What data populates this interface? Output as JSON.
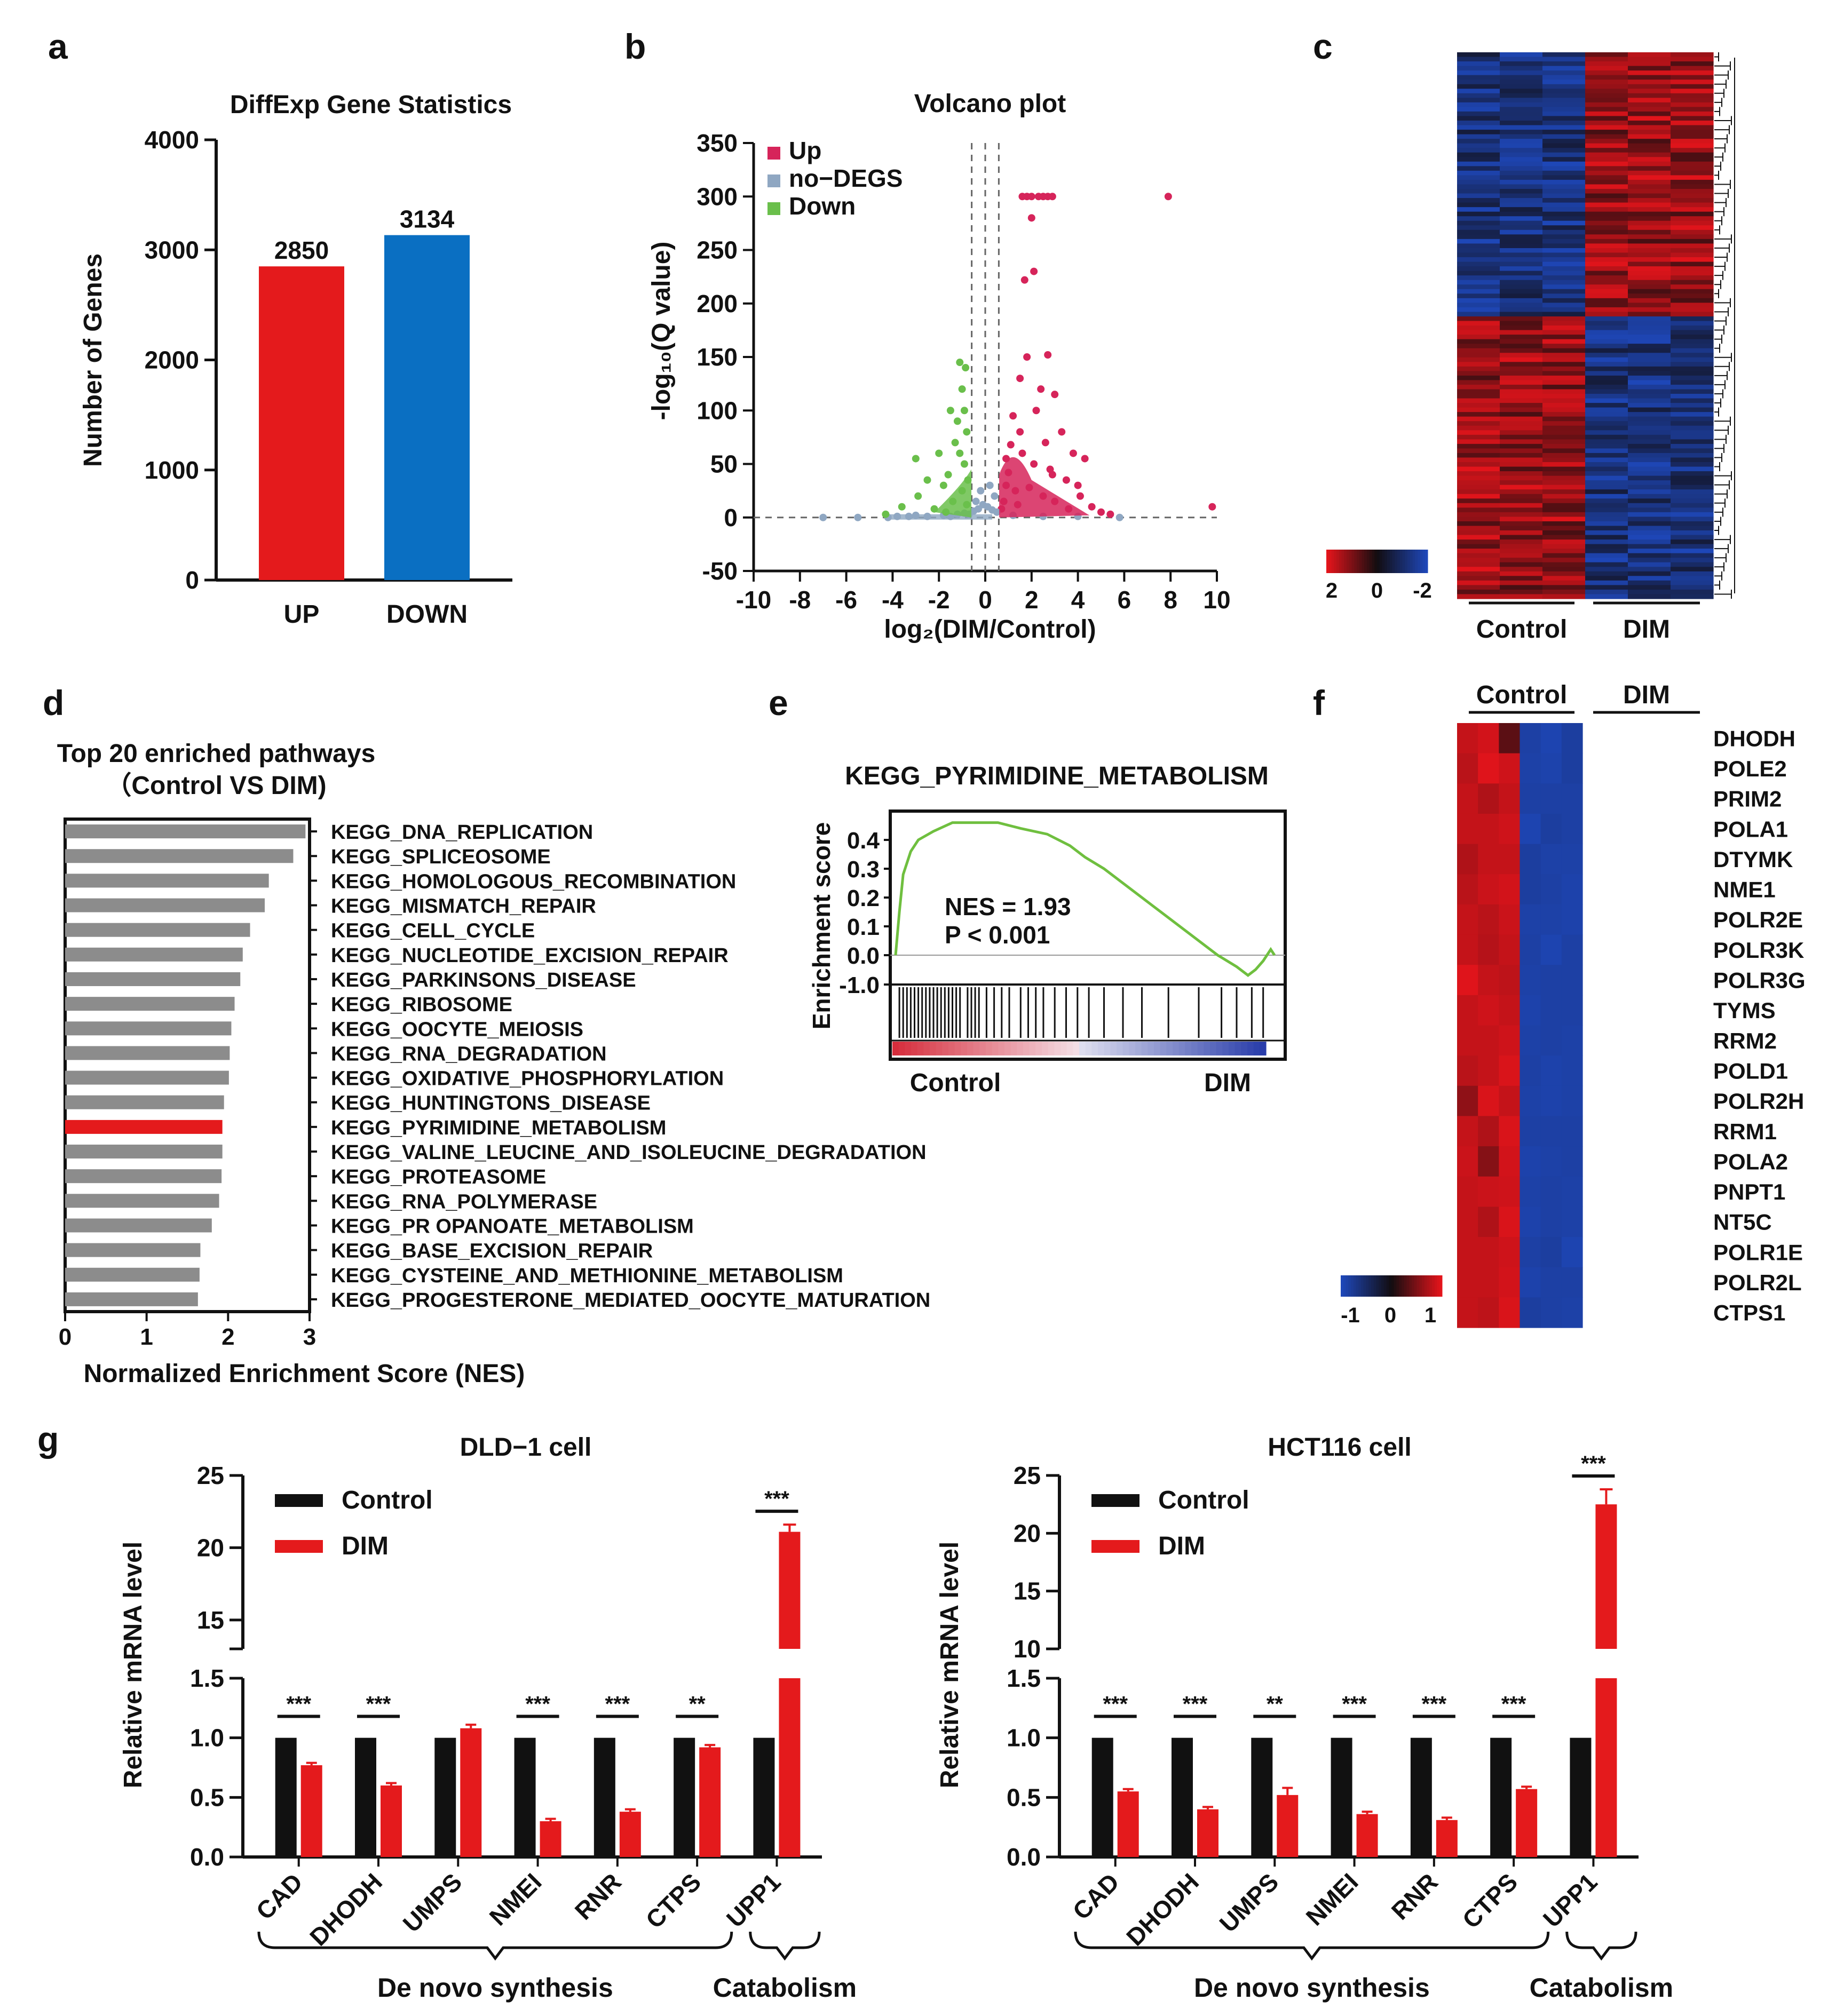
{
  "colors": {
    "red": "#e41a1c",
    "blue": "#0a6fc2",
    "gray": "#8c8c8c",
    "up": "#d6245a",
    "nodeg": "#8fa7c2",
    "down": "#6abf4b",
    "black": "#111111",
    "heat_red": "#e3141b",
    "heat_blue": "#1e47b8",
    "gsea_line": "#6fbf3f"
  },
  "panels": {
    "a": "a",
    "b": "b",
    "c": "c",
    "d": "d",
    "e": "e",
    "f": "f",
    "g": "g"
  },
  "chart_data": [
    {
      "id": "a",
      "type": "bar",
      "title": "DiffExp Gene Statistics",
      "ylabel": "Number of Genes",
      "xlabel": "",
      "categories": [
        "UP",
        "DOWN"
      ],
      "values": [
        2850,
        3134
      ],
      "value_labels": [
        "2850",
        "3134"
      ],
      "ylim": [
        0,
        4000
      ],
      "yticks": [
        "0",
        "1000",
        "2000",
        "3000",
        "4000"
      ]
    },
    {
      "id": "b",
      "type": "scatter",
      "title": "Volcano plot",
      "xlabel": "log₂(DIM/Control)",
      "ylabel": "-log₁₀(Q value)",
      "xlim": [
        -10,
        10
      ],
      "ylim": [
        -50,
        350
      ],
      "xticks": [
        "-10",
        "-8",
        "-6",
        "-4",
        "-2",
        "0",
        "2",
        "4",
        "6",
        "8",
        "10"
      ],
      "yticks": [
        "-50",
        "0",
        "50",
        "100",
        "150",
        "200",
        "250",
        "300",
        "350"
      ],
      "legend": [
        "Up",
        "no−DEGS",
        "Down"
      ],
      "thresholds": {
        "log2fc": [
          -0.585,
          0.585
        ],
        "center": 0
      },
      "series": [
        {
          "name": "Up",
          "points": [
            [
              1.6,
              300
            ],
            [
              1.8,
              300
            ],
            [
              2.0,
              300
            ],
            [
              2.3,
              300
            ],
            [
              2.5,
              300
            ],
            [
              2.7,
              300
            ],
            [
              2.9,
              300
            ],
            [
              7.9,
              300
            ],
            [
              2.0,
              280
            ],
            [
              2.1,
              230
            ],
            [
              1.7,
              222
            ],
            [
              1.8,
              150
            ],
            [
              2.7,
              152
            ],
            [
              1.5,
              130
            ],
            [
              2.4,
              120
            ],
            [
              3.0,
              115
            ],
            [
              2.2,
              100
            ],
            [
              1.2,
              95
            ],
            [
              3.3,
              80
            ],
            [
              2.6,
              70
            ],
            [
              1.1,
              68
            ],
            [
              3.8,
              60
            ],
            [
              4.3,
              55
            ],
            [
              4.0,
              30
            ],
            [
              3.5,
              35
            ],
            [
              1.0,
              42
            ],
            [
              2.8,
              45
            ],
            [
              0.9,
              30
            ],
            [
              1.3,
              25
            ],
            [
              1.9,
              28
            ],
            [
              2.5,
              20
            ],
            [
              3.0,
              15
            ],
            [
              4.6,
              10
            ],
            [
              5.0,
              5
            ],
            [
              9.8,
              10
            ],
            [
              1.4,
              12
            ],
            [
              0.8,
              15
            ],
            [
              3.6,
              8
            ],
            [
              2.1,
              50
            ],
            [
              1.6,
              60
            ],
            [
              0.9,
              55
            ],
            [
              1.5,
              80
            ],
            [
              2.9,
              40
            ],
            [
              4.1,
              20
            ],
            [
              0.7,
              8
            ],
            [
              5.4,
              3
            ]
          ]
        },
        {
          "name": "no−DEGS",
          "points": [
            [
              -7.0,
              0
            ],
            [
              -5.5,
              0
            ],
            [
              -4.2,
              0
            ],
            [
              -3.8,
              1
            ],
            [
              -3.3,
              1
            ],
            [
              -3.0,
              2
            ],
            [
              -2.5,
              1
            ],
            [
              -1.8,
              2
            ],
            [
              -1.2,
              3
            ],
            [
              -0.9,
              4
            ],
            [
              -0.5,
              6
            ],
            [
              -0.3,
              8
            ],
            [
              -0.1,
              12
            ],
            [
              0.1,
              10
            ],
            [
              0.3,
              7
            ],
            [
              0.5,
              5
            ],
            [
              0.4,
              20
            ],
            [
              -0.4,
              15
            ],
            [
              0.2,
              30
            ],
            [
              -0.2,
              25
            ],
            [
              1.2,
              2
            ],
            [
              2.5,
              1
            ],
            [
              4.0,
              1
            ],
            [
              5.8,
              0
            ],
            [
              -1.5,
              1
            ],
            [
              -0.7,
              3
            ]
          ]
        },
        {
          "name": "Down",
          "points": [
            [
              -1.1,
              145
            ],
            [
              -1.0,
              120
            ],
            [
              -0.9,
              100
            ],
            [
              -1.2,
              90
            ],
            [
              -0.8,
              80
            ],
            [
              -1.3,
              70
            ],
            [
              -2.0,
              60
            ],
            [
              -3.0,
              55
            ],
            [
              -0.9,
              50
            ],
            [
              -1.6,
              40
            ],
            [
              -2.5,
              35
            ],
            [
              -1.8,
              30
            ],
            [
              -1.0,
              25
            ],
            [
              -2.9,
              20
            ],
            [
              -3.6,
              10
            ],
            [
              -1.4,
              15
            ],
            [
              -0.75,
              35
            ],
            [
              -0.8,
              12
            ],
            [
              -2.2,
              8
            ],
            [
              -1.1,
              60
            ],
            [
              -0.85,
              140
            ],
            [
              -1.5,
              100
            ],
            [
              -1.7,
              5
            ],
            [
              -4.3,
              3
            ]
          ]
        }
      ]
    },
    {
      "id": "c",
      "type": "heatmap",
      "groups": [
        "Control",
        "DIM"
      ],
      "legend_ticks": [
        "2",
        "0",
        "-2"
      ]
    },
    {
      "id": "d",
      "type": "bar",
      "title": "Top 20 enriched pathways",
      "subtitle": "（Control VS DIM)",
      "xlabel": "Normalized Enrichment Score (NES)",
      "xlim": [
        0,
        3
      ],
      "xticks": [
        "0",
        "1",
        "2",
        "3"
      ],
      "highlight": "KEGG_PYRIMIDINE_METABOLISM",
      "categories": [
        "KEGG_DNA_REPLICATION",
        "KEGG_SPLICEOSOME",
        "KEGG_HOMOLOGOUS_RECOMBINATION",
        "KEGG_MISMATCH_REPAIR",
        "KEGG_CELL_CYCLE",
        "KEGG_NUCLEOTIDE_EXCISION_REPAIR",
        "KEGG_PARKINSONS_DISEASE",
        "KEGG_RIBOSOME",
        "KEGG_OOCYTE_MEIOSIS",
        "KEGG_RNA_DEGRADATION",
        "KEGG_OXIDATIVE_PHOSPHORYLATION",
        "KEGG_HUNTINGTONS_DISEASE",
        "KEGG_PYRIMIDINE_METABOLISM",
        "KEGG_VALINE_LEUCINE_AND_ISOLEUCINE_DEGRADATION",
        "KEGG_PROTEASOME",
        "KEGG_RNA_POLYMERASE",
        "KEGG_PR OPANOATE_METABOLISM",
        "KEGG_BASE_EXCISION_REPAIR",
        "KEGG_CYSTEINE_AND_METHIONINE_METABOLISM",
        "KEGG_PROGESTERONE_MEDIATED_OOCYTE_MATURATION"
      ],
      "values": [
        2.95,
        2.8,
        2.5,
        2.45,
        2.27,
        2.18,
        2.15,
        2.08,
        2.04,
        2.02,
        2.01,
        1.95,
        1.93,
        1.93,
        1.92,
        1.89,
        1.8,
        1.66,
        1.65,
        1.63
      ]
    },
    {
      "id": "e",
      "type": "line",
      "title": "KEGG_PYRIMIDINE_METABOLISM",
      "ylabel": "Enrichment score",
      "yticks": [
        "0.4",
        "0.3",
        "0.2",
        "0.1",
        "0.0",
        "-1.0"
      ],
      "nes": "NES = 1.93",
      "pvalue": "P < 0.001",
      "low_label": "Control",
      "high_label": "DIM",
      "es": [
        [
          0,
          0
        ],
        [
          0.01,
          0.15
        ],
        [
          0.02,
          0.28
        ],
        [
          0.04,
          0.36
        ],
        [
          0.06,
          0.4
        ],
        [
          0.1,
          0.43
        ],
        [
          0.15,
          0.46
        ],
        [
          0.2,
          0.46
        ],
        [
          0.27,
          0.46
        ],
        [
          0.33,
          0.44
        ],
        [
          0.4,
          0.42
        ],
        [
          0.46,
          0.38
        ],
        [
          0.5,
          0.34
        ],
        [
          0.55,
          0.3
        ],
        [
          0.6,
          0.25
        ],
        [
          0.65,
          0.2
        ],
        [
          0.7,
          0.15
        ],
        [
          0.75,
          0.1
        ],
        [
          0.8,
          0.05
        ],
        [
          0.85,
          0.0
        ],
        [
          0.9,
          -0.04
        ],
        [
          0.93,
          -0.07
        ],
        [
          0.95,
          -0.05
        ],
        [
          0.97,
          -0.02
        ],
        [
          0.99,
          0.02
        ],
        [
          1.0,
          0.0
        ]
      ],
      "hits": [
        0.01,
        0.02,
        0.03,
        0.04,
        0.05,
        0.06,
        0.07,
        0.08,
        0.09,
        0.1,
        0.11,
        0.12,
        0.13,
        0.14,
        0.15,
        0.16,
        0.17,
        0.19,
        0.2,
        0.21,
        0.22,
        0.24,
        0.26,
        0.28,
        0.3,
        0.33,
        0.35,
        0.37,
        0.39,
        0.42,
        0.45,
        0.48,
        0.51,
        0.55,
        0.6,
        0.65,
        0.72,
        0.8,
        0.86,
        0.9,
        0.94,
        0.97
      ]
    },
    {
      "id": "f",
      "type": "heatmap",
      "groups": [
        "Control",
        "DIM"
      ],
      "highlight": "DHODH",
      "legend_ticks": [
        "-1",
        "0",
        "1"
      ],
      "genes": [
        "DHODH",
        "POLE2",
        "PRIM2",
        "POLA1",
        "DTYMK",
        "NME1",
        "POLR2E",
        "POLR3K",
        "POLR3G",
        "TYMS",
        "RRM2",
        "POLD1",
        "POLR2H",
        "RRM1",
        "POLA2",
        "PNPT1",
        "NT5C",
        "POLR1E",
        "POLR2L",
        "CTPS1"
      ],
      "values": [
        [
          0.85,
          0.92,
          0.35,
          -0.88,
          -0.95,
          -0.85
        ],
        [
          0.8,
          0.98,
          0.9,
          -0.9,
          -0.93,
          -0.85
        ],
        [
          0.85,
          0.75,
          0.85,
          -0.88,
          -0.88,
          -0.88
        ],
        [
          0.85,
          0.85,
          0.9,
          -0.95,
          -0.85,
          -0.88
        ],
        [
          0.75,
          0.85,
          0.85,
          -0.85,
          -0.9,
          -0.9
        ],
        [
          0.8,
          0.88,
          0.92,
          -0.85,
          -0.88,
          -0.92
        ],
        [
          0.85,
          0.8,
          0.88,
          -0.9,
          -0.9,
          -0.92
        ],
        [
          0.85,
          0.78,
          0.85,
          -0.88,
          -0.95,
          -0.88
        ],
        [
          0.98,
          0.85,
          0.82,
          -0.9,
          -0.88,
          -0.88
        ],
        [
          0.85,
          0.9,
          0.85,
          -0.92,
          -0.88,
          -0.88
        ],
        [
          0.85,
          0.85,
          0.9,
          -0.9,
          -0.88,
          -0.9
        ],
        [
          0.8,
          0.85,
          0.95,
          -0.88,
          -0.92,
          -0.9
        ],
        [
          0.6,
          0.95,
          0.85,
          -0.9,
          -0.92,
          -0.9
        ],
        [
          0.85,
          0.75,
          0.95,
          -0.88,
          -0.88,
          -0.88
        ],
        [
          0.88,
          0.55,
          0.92,
          -0.92,
          -0.9,
          -0.88
        ],
        [
          0.85,
          0.88,
          0.9,
          -0.9,
          -0.88,
          -0.9
        ],
        [
          0.85,
          0.75,
          0.95,
          -0.92,
          -0.88,
          -0.9
        ],
        [
          0.85,
          0.85,
          0.9,
          -0.88,
          -0.85,
          -0.95
        ],
        [
          0.85,
          0.85,
          0.92,
          -0.92,
          -0.88,
          -0.88
        ],
        [
          0.85,
          0.82,
          0.95,
          -0.85,
          -0.88,
          -0.9
        ]
      ]
    },
    {
      "id": "g1",
      "type": "bar",
      "title": "DLD−1 cell",
      "ylabel": "Relative mRNA level",
      "categories": [
        "CAD",
        "DHODH",
        "UMPS",
        "NMEI",
        "RNR",
        "CTPS",
        "UPP1"
      ],
      "series": [
        {
          "name": "Control",
          "values": [
            1,
            1,
            1,
            1,
            1,
            1,
            1
          ],
          "errors": [
            0,
            0,
            0,
            0,
            0,
            0,
            0
          ]
        },
        {
          "name": "DIM",
          "values": [
            0.77,
            0.6,
            1.08,
            0.3,
            0.38,
            0.92,
            21.1
          ],
          "errors": [
            0.02,
            0.02,
            0.03,
            0.02,
            0.02,
            0.02,
            0.5
          ]
        }
      ],
      "significance": [
        "***",
        "***",
        "",
        "***",
        "***",
        "**",
        "***"
      ],
      "yticks_low": [
        "0.0",
        "0.5",
        "1.0",
        "1.5"
      ],
      "yticks_high": [
        "15",
        "20",
        "25"
      ],
      "ylim_low": [
        0,
        1.5
      ],
      "ylim_high": [
        13,
        25
      ],
      "group_labels": [
        "De novo synthesis",
        "Catabolism"
      ]
    },
    {
      "id": "g2",
      "type": "bar",
      "title": "HCT116 cell",
      "ylabel": "Relative mRNA level",
      "categories": [
        "CAD",
        "DHODH",
        "UMPS",
        "NMEI",
        "RNR",
        "CTPS",
        "UPP1"
      ],
      "series": [
        {
          "name": "Control",
          "values": [
            1,
            1,
            1,
            1,
            1,
            1,
            1
          ],
          "errors": [
            0,
            0,
            0,
            0,
            0,
            0,
            0
          ]
        },
        {
          "name": "DIM",
          "values": [
            0.55,
            0.4,
            0.52,
            0.36,
            0.31,
            0.57,
            22.5
          ],
          "errors": [
            0.02,
            0.02,
            0.06,
            0.02,
            0.02,
            0.02,
            1.3
          ]
        }
      ],
      "significance": [
        "***",
        "***",
        "**",
        "***",
        "***",
        "***",
        "***"
      ],
      "yticks_low": [
        "0.0",
        "0.5",
        "1.0",
        "1.5"
      ],
      "yticks_high": [
        "10",
        "15",
        "20",
        "25"
      ],
      "ylim_low": [
        0,
        1.5
      ],
      "ylim_high": [
        10,
        25
      ],
      "group_labels": [
        "De novo synthesis",
        "Catabolism"
      ]
    }
  ]
}
